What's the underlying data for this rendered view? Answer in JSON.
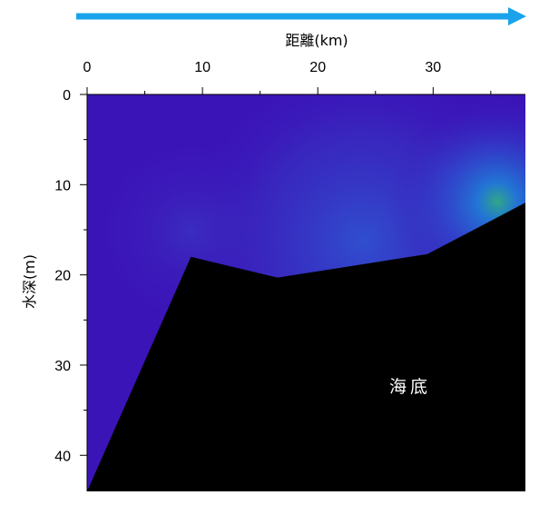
{
  "chart_data": {
    "type": "heatmap",
    "title": "",
    "xlabel": "距離(km)",
    "ylabel": "水深(m)",
    "xlim": [
      0,
      38
    ],
    "ylim": [
      0,
      44
    ],
    "y_inverted": true,
    "x_ticks": [
      0,
      10,
      20,
      30
    ],
    "y_ticks": [
      0,
      10,
      20,
      30,
      40
    ],
    "seabed_profile": {
      "x": [
        0,
        9,
        16.5,
        29.5,
        38
      ],
      "depth": [
        44,
        18,
        20.3,
        17.7,
        12
      ]
    },
    "field_peak": {
      "x": 37,
      "depth": 12,
      "color": "#2fae86"
    },
    "annotations": [
      "海底"
    ],
    "colors": {
      "water": "#3b14b8",
      "seabed": "#000000",
      "direction_arrow": "#1aa3ea"
    },
    "legend": "none",
    "grid": false
  }
}
